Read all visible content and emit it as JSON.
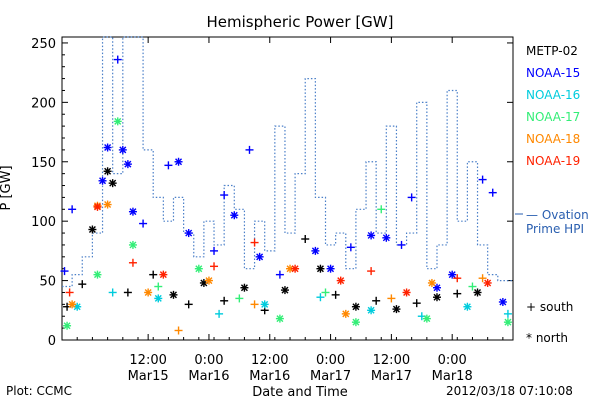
{
  "chart_data": {
    "type": "scatter",
    "title": "Hemispheric Power [GW]",
    "ylabel": "P [GW]",
    "xlabel": "Date and Time",
    "ylim": [
      0,
      255
    ],
    "xlim": [
      "2012-03-14T19:00",
      "2012-03-18T12:00"
    ],
    "y_ticks": [
      0,
      50,
      100,
      150,
      200,
      250
    ],
    "x_ticks": [
      {
        "t": "2012-03-15T12:00",
        "label1": "12:00",
        "label2": "Mar15"
      },
      {
        "t": "2012-03-16T00:00",
        "label1": "0:00",
        "label2": "Mar16"
      },
      {
        "t": "2012-03-16T12:00",
        "label1": "12:00",
        "label2": "Mar16"
      },
      {
        "t": "2012-03-17T00:00",
        "label1": "0:00",
        "label2": "Mar17"
      },
      {
        "t": "2012-03-17T12:00",
        "label1": "12:00",
        "label2": "Mar17"
      },
      {
        "t": "2012-03-18T00:00",
        "label1": "0:00",
        "label2": "Mar18"
      }
    ],
    "legend_placement": "right",
    "series": [
      {
        "name": "METP-02",
        "color": "#000000",
        "values": [
          [
            "2012-03-14T20:00",
            28,
            "s"
          ],
          [
            "2012-03-14T23:00",
            47,
            "s"
          ],
          [
            "2012-03-15T01:00",
            93,
            "n"
          ],
          [
            "2012-03-15T04:00",
            142,
            "n"
          ],
          [
            "2012-03-15T05:00",
            132,
            "n"
          ],
          [
            "2012-03-15T08:00",
            40,
            "s"
          ],
          [
            "2012-03-15T13:00",
            55,
            "s"
          ],
          [
            "2012-03-15T17:00",
            38,
            "n"
          ],
          [
            "2012-03-15T20:00",
            30,
            "s"
          ],
          [
            "2012-03-15T23:00",
            48,
            "n"
          ],
          [
            "2012-03-16T03:00",
            33,
            "s"
          ],
          [
            "2012-03-16T07:00",
            44,
            "n"
          ],
          [
            "2012-03-16T11:00",
            25,
            "s"
          ],
          [
            "2012-03-16T15:00",
            42,
            "n"
          ],
          [
            "2012-03-16T19:00",
            85,
            "s"
          ],
          [
            "2012-03-16T22:00",
            60,
            "n"
          ],
          [
            "2012-03-17T01:00",
            38,
            "s"
          ],
          [
            "2012-03-17T05:00",
            28,
            "n"
          ],
          [
            "2012-03-17T09:00",
            33,
            "s"
          ],
          [
            "2012-03-17T13:00",
            26,
            "n"
          ],
          [
            "2012-03-17T17:00",
            31,
            "s"
          ],
          [
            "2012-03-17T21:00",
            36,
            "n"
          ],
          [
            "2012-03-18T01:00",
            39,
            "s"
          ],
          [
            "2012-03-18T05:00",
            40,
            "n"
          ]
        ]
      },
      {
        "name": "NOAA-15",
        "color": "#0000ff",
        "values": [
          [
            "2012-03-14T19:30",
            58,
            "s"
          ],
          [
            "2012-03-14T21:00",
            110,
            "s"
          ],
          [
            "2012-03-15T03:00",
            134,
            "n"
          ],
          [
            "2012-03-15T04:00",
            162,
            "n"
          ],
          [
            "2012-03-15T06:00",
            236,
            "s"
          ],
          [
            "2012-03-15T07:00",
            160,
            "n"
          ],
          [
            "2012-03-15T08:00",
            148,
            "n"
          ],
          [
            "2012-03-15T09:00",
            108,
            "n"
          ],
          [
            "2012-03-15T11:00",
            98,
            "s"
          ],
          [
            "2012-03-15T16:00",
            147,
            "s"
          ],
          [
            "2012-03-15T18:00",
            150,
            "n"
          ],
          [
            "2012-03-15T20:00",
            90,
            "n"
          ],
          [
            "2012-03-16T01:00",
            75,
            "s"
          ],
          [
            "2012-03-16T03:00",
            122,
            "s"
          ],
          [
            "2012-03-16T05:00",
            105,
            "n"
          ],
          [
            "2012-03-16T08:00",
            160,
            "s"
          ],
          [
            "2012-03-16T10:00",
            70,
            "n"
          ],
          [
            "2012-03-16T14:00",
            55,
            "s"
          ],
          [
            "2012-03-16T21:00",
            75,
            "n"
          ],
          [
            "2012-03-17T00:00",
            60,
            "n"
          ],
          [
            "2012-03-17T04:00",
            78,
            "s"
          ],
          [
            "2012-03-17T08:00",
            88,
            "n"
          ],
          [
            "2012-03-17T11:00",
            86,
            "n"
          ],
          [
            "2012-03-17T14:00",
            80,
            "s"
          ],
          [
            "2012-03-17T16:00",
            120,
            "s"
          ],
          [
            "2012-03-17T21:00",
            44,
            "n"
          ],
          [
            "2012-03-18T00:00",
            55,
            "n"
          ],
          [
            "2012-03-18T06:00",
            135,
            "s"
          ],
          [
            "2012-03-18T08:00",
            124,
            "s"
          ],
          [
            "2012-03-18T10:00",
            32,
            "n"
          ]
        ]
      },
      {
        "name": "NOAA-16",
        "color": "#00ccdd",
        "values": [
          [
            "2012-03-14T22:00",
            28,
            "n"
          ],
          [
            "2012-03-15T05:00",
            40,
            "s"
          ],
          [
            "2012-03-15T14:00",
            35,
            "n"
          ],
          [
            "2012-03-16T02:00",
            22,
            "s"
          ],
          [
            "2012-03-16T11:00",
            30,
            "n"
          ],
          [
            "2012-03-16T22:00",
            36,
            "s"
          ],
          [
            "2012-03-17T08:00",
            25,
            "n"
          ],
          [
            "2012-03-17T18:00",
            20,
            "s"
          ],
          [
            "2012-03-18T03:00",
            28,
            "n"
          ],
          [
            "2012-03-18T11:00",
            22,
            "s"
          ]
        ]
      },
      {
        "name": "NOAA-17",
        "color": "#33ee77",
        "values": [
          [
            "2012-03-14T20:00",
            12,
            "n"
          ],
          [
            "2012-03-15T02:00",
            55,
            "n"
          ],
          [
            "2012-03-15T06:00",
            184,
            "n"
          ],
          [
            "2012-03-15T09:00",
            80,
            "n"
          ],
          [
            "2012-03-15T14:00",
            45,
            "s"
          ],
          [
            "2012-03-15T22:00",
            60,
            "n"
          ],
          [
            "2012-03-16T06:00",
            35,
            "s"
          ],
          [
            "2012-03-16T14:00",
            18,
            "n"
          ],
          [
            "2012-03-16T23:00",
            40,
            "s"
          ],
          [
            "2012-03-17T05:00",
            15,
            "n"
          ],
          [
            "2012-03-17T10:00",
            110,
            "s"
          ],
          [
            "2012-03-17T19:00",
            18,
            "n"
          ],
          [
            "2012-03-18T04:00",
            45,
            "s"
          ],
          [
            "2012-03-18T11:00",
            15,
            "n"
          ]
        ]
      },
      {
        "name": "NOAA-18",
        "color": "#ff8800",
        "values": [
          [
            "2012-03-14T21:00",
            30,
            "n"
          ],
          [
            "2012-03-15T02:00",
            113,
            "n"
          ],
          [
            "2012-03-15T04:00",
            114,
            "n"
          ],
          [
            "2012-03-15T12:00",
            40,
            "n"
          ],
          [
            "2012-03-15T18:00",
            8,
            "s"
          ],
          [
            "2012-03-16T00:00",
            50,
            "n"
          ],
          [
            "2012-03-16T09:00",
            30,
            "s"
          ],
          [
            "2012-03-16T16:00",
            60,
            "n"
          ],
          [
            "2012-03-17T03:00",
            22,
            "n"
          ],
          [
            "2012-03-17T12:00",
            35,
            "s"
          ],
          [
            "2012-03-17T20:00",
            48,
            "n"
          ],
          [
            "2012-03-18T06:00",
            52,
            "s"
          ]
        ]
      },
      {
        "name": "NOAA-19",
        "color": "#ff2200",
        "values": [
          [
            "2012-03-14T20:30",
            40,
            "s"
          ],
          [
            "2012-03-15T02:00",
            112,
            "n"
          ],
          [
            "2012-03-15T09:00",
            65,
            "s"
          ],
          [
            "2012-03-15T15:00",
            55,
            "n"
          ],
          [
            "2012-03-16T01:00",
            62,
            "s"
          ],
          [
            "2012-03-16T09:00",
            82,
            "s"
          ],
          [
            "2012-03-16T17:00",
            60,
            "n"
          ],
          [
            "2012-03-17T02:00",
            50,
            "n"
          ],
          [
            "2012-03-17T08:00",
            58,
            "s"
          ],
          [
            "2012-03-17T15:00",
            40,
            "n"
          ],
          [
            "2012-03-18T01:00",
            52,
            "s"
          ],
          [
            "2012-03-18T07:00",
            48,
            "n"
          ]
        ]
      }
    ],
    "ovation": {
      "name": "— Ovation Prime HPI",
      "color": "#4a7fc8",
      "style": "dotted",
      "values": [
        [
          "2012-03-14T19:00",
          45
        ],
        [
          "2012-03-14T21:00",
          55
        ],
        [
          "2012-03-14T23:00",
          70
        ],
        [
          "2012-03-15T01:00",
          90
        ],
        [
          "2012-03-15T03:00",
          255
        ],
        [
          "2012-03-15T05:00",
          140
        ],
        [
          "2012-03-15T07:00",
          255
        ],
        [
          "2012-03-15T09:00",
          255
        ],
        [
          "2012-03-15T11:00",
          160
        ],
        [
          "2012-03-15T13:00",
          120
        ],
        [
          "2012-03-15T15:00",
          100
        ],
        [
          "2012-03-15T17:00",
          120
        ],
        [
          "2012-03-15T19:00",
          90
        ],
        [
          "2012-03-15T21:00",
          70
        ],
        [
          "2012-03-15T23:00",
          100
        ],
        [
          "2012-03-16T01:00",
          80
        ],
        [
          "2012-03-16T03:00",
          130
        ],
        [
          "2012-03-16T05:00",
          110
        ],
        [
          "2012-03-16T07:00",
          60
        ],
        [
          "2012-03-16T09:00",
          100
        ],
        [
          "2012-03-16T11:00",
          75
        ],
        [
          "2012-03-16T13:00",
          180
        ],
        [
          "2012-03-16T15:00",
          90
        ],
        [
          "2012-03-16T17:00",
          140
        ],
        [
          "2012-03-16T19:00",
          220
        ],
        [
          "2012-03-16T21:00",
          120
        ],
        [
          "2012-03-16T23:00",
          80
        ],
        [
          "2012-03-17T01:00",
          90
        ],
        [
          "2012-03-17T03:00",
          60
        ],
        [
          "2012-03-17T05:00",
          110
        ],
        [
          "2012-03-17T07:00",
          150
        ],
        [
          "2012-03-17T09:00",
          90
        ],
        [
          "2012-03-17T11:00",
          180
        ],
        [
          "2012-03-17T13:00",
          80
        ],
        [
          "2012-03-17T15:00",
          90
        ],
        [
          "2012-03-17T17:00",
          200
        ],
        [
          "2012-03-17T19:00",
          60
        ],
        [
          "2012-03-17T21:00",
          80
        ],
        [
          "2012-03-17T23:00",
          210
        ],
        [
          "2012-03-18T01:00",
          100
        ],
        [
          "2012-03-18T03:00",
          150
        ],
        [
          "2012-03-18T05:00",
          80
        ],
        [
          "2012-03-18T07:00",
          55
        ],
        [
          "2012-03-18T09:00",
          50
        ],
        [
          "2012-03-18T12:00",
          50
        ]
      ]
    },
    "markers_legend": {
      "south": "+ south",
      "north": "* north"
    }
  },
  "ovation_label_line1": "— Ovation",
  "ovation_label_line2": "Prime HPI",
  "footer_left": "Plot: CCMC",
  "footer_right": "2012/03/18 07:10:08"
}
